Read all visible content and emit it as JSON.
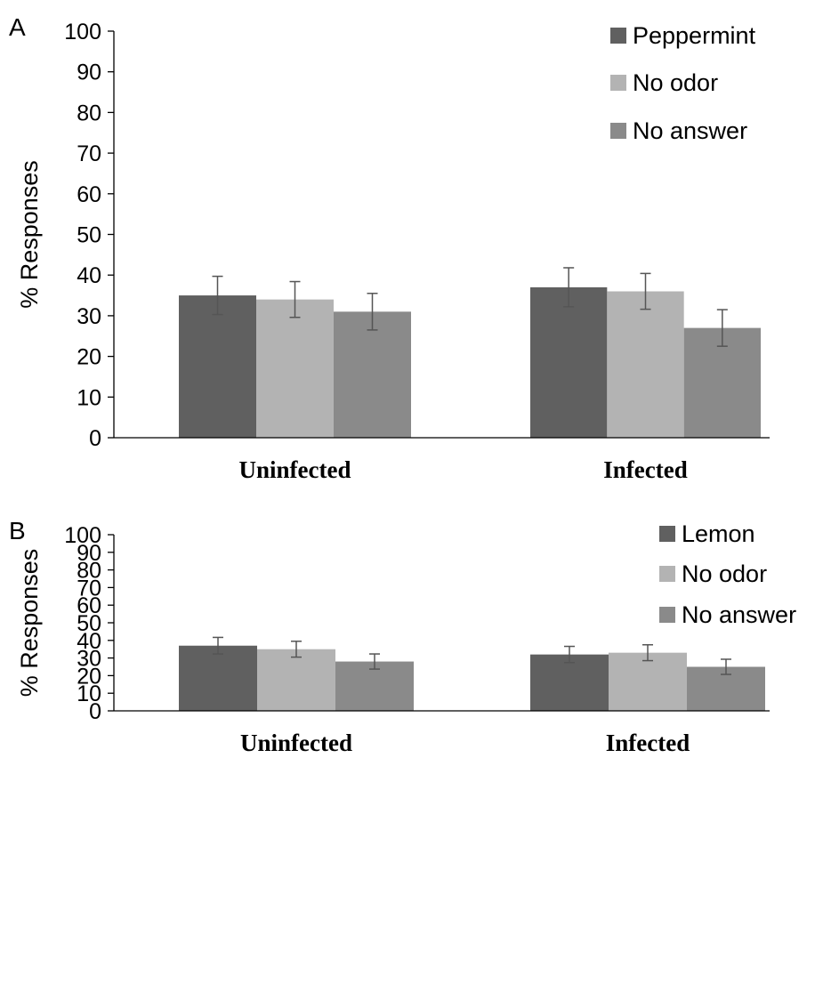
{
  "chart_data": [
    {
      "type": "bar",
      "panel_label": "A",
      "categories": [
        "Uninfected",
        "Infected"
      ],
      "ylabel": "% Responses",
      "ylim": [
        0,
        100
      ],
      "yticks": [
        "0",
        "10",
        "20",
        "30",
        "40",
        "50",
        "60",
        "70",
        "80",
        "90",
        "100"
      ],
      "legend_position": "top-right",
      "series": [
        {
          "name": "Peppermint",
          "color": "#606060",
          "values": [
            35,
            37
          ],
          "errors": [
            4.7,
            4.8
          ]
        },
        {
          "name": "No odor",
          "color": "#b3b3b3",
          "values": [
            34,
            36
          ],
          "errors": [
            4.4,
            4.4
          ]
        },
        {
          "name": "No answer",
          "color": "#8a8a8a",
          "values": [
            31,
            27
          ],
          "errors": [
            4.5,
            4.5
          ]
        }
      ]
    },
    {
      "type": "bar",
      "panel_label": "B",
      "categories": [
        "Uninfected",
        "Infected"
      ],
      "ylabel": "% Responses",
      "ylim": [
        0,
        100
      ],
      "yticks": [
        "0",
        "10",
        "20",
        "30",
        "40",
        "50",
        "60",
        "70",
        "80",
        "90",
        "100"
      ],
      "legend_position": "top-right",
      "series": [
        {
          "name": "Lemon",
          "color": "#606060",
          "values": [
            37,
            32
          ],
          "errors": [
            4.7,
            4.6
          ]
        },
        {
          "name": "No odor",
          "color": "#b3b3b3",
          "values": [
            35,
            33
          ],
          "errors": [
            4.5,
            4.5
          ]
        },
        {
          "name": "No answer",
          "color": "#8a8a8a",
          "values": [
            28,
            25
          ],
          "errors": [
            4.3,
            4.3
          ]
        }
      ]
    }
  ]
}
